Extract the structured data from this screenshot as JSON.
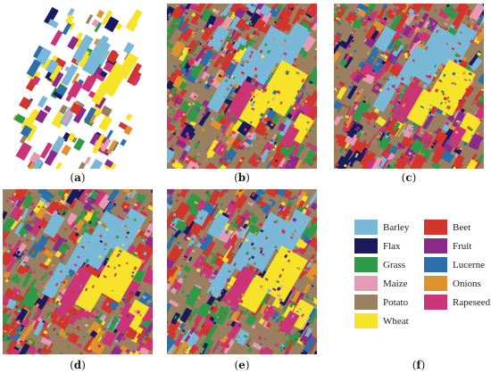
{
  "panels": [
    {
      "id": "a",
      "label_open": "(",
      "label_letter": "a",
      "label_close": ")",
      "style": "ground-truth"
    },
    {
      "id": "b",
      "label_open": "(",
      "label_letter": "b",
      "label_close": ")",
      "style": "classified"
    },
    {
      "id": "c",
      "label_open": "(",
      "label_letter": "c",
      "label_close": ")",
      "style": "classified"
    },
    {
      "id": "d",
      "label_open": "(",
      "label_letter": "d",
      "label_close": ")",
      "style": "classified"
    },
    {
      "id": "e",
      "label_open": "(",
      "label_letter": "e",
      "label_close": ")",
      "style": "classified"
    }
  ],
  "legend_caption": {
    "label_open": "(",
    "label_letter": "f",
    "label_close": ")"
  },
  "legend": [
    {
      "label": "Barley",
      "color": "#7ab8d8"
    },
    {
      "label": "Beet",
      "color": "#d2352c"
    },
    {
      "label": "Flax",
      "color": "#1a1a5e"
    },
    {
      "label": "Fruit",
      "color": "#8b2a8b"
    },
    {
      "label": "Grass",
      "color": "#2e9a48"
    },
    {
      "label": "Lucerne",
      "color": "#2c6faa"
    },
    {
      "label": "Maize",
      "color": "#e79ab4"
    },
    {
      "label": "Onions",
      "color": "#e0922c"
    },
    {
      "label": "Potato",
      "color": "#9a8060"
    },
    {
      "label": "Rapeseed",
      "color": "#cc3478"
    },
    {
      "label": "Wheat",
      "color": "#f7e42a"
    }
  ]
}
